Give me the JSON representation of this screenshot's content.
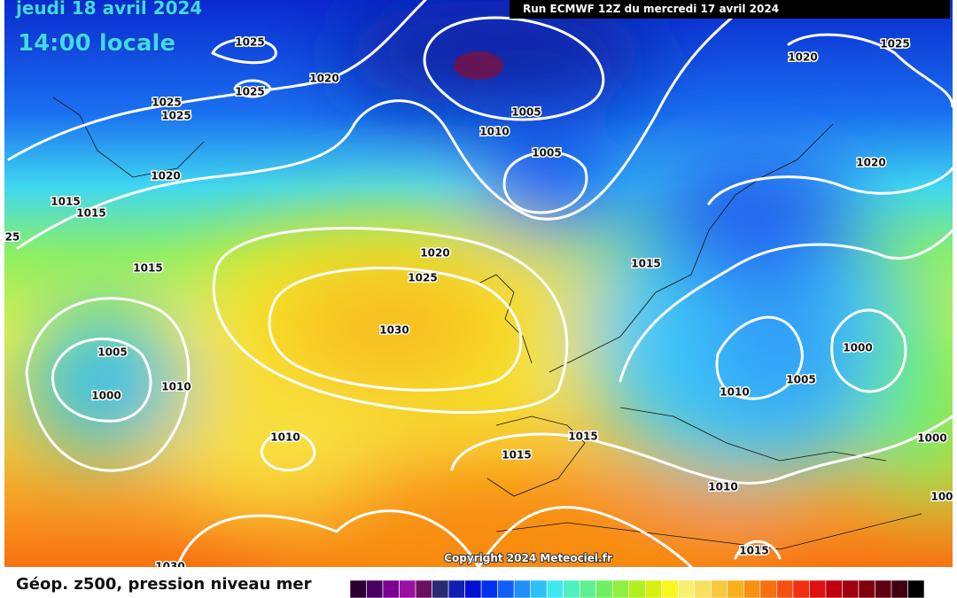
{
  "header": {
    "date": "jeudi 18 avril 2024",
    "time": "14:00 locale",
    "run": "Run ECMWF 12Z du mercredi 17 avril 2024"
  },
  "copyright": "Copyright 2024 Meteociel.fr",
  "isobar_labels": [
    "1025",
    "1025",
    "1020",
    "1025",
    "1025",
    "1020",
    "1015",
    "1015",
    "25",
    "1015",
    "1005",
    "1000",
    "1010",
    "1010",
    "1030",
    "1025",
    "1020",
    "1010",
    "1005",
    "1005",
    "1020",
    "1025",
    "1020",
    "1015",
    "1000",
    "1005",
    "1010",
    "1015",
    "1015",
    "1010",
    "1000",
    "1015",
    "100",
    "1030"
  ],
  "legend": {
    "title": "Géop. z500, pression niveau mer",
    "colors": [
      "#2a0030",
      "#4a0060",
      "#7a0090",
      "#9a10a0",
      "#6a1060",
      "#2a2a70",
      "#1020b0",
      "#0010d0",
      "#0030f0",
      "#1060f8",
      "#2090f8",
      "#30c0f8",
      "#40e8f0",
      "#50f0c0",
      "#60f090",
      "#70f060",
      "#90f040",
      "#b0f020",
      "#d8f010",
      "#f8f820",
      "#f8f070",
      "#f8e060",
      "#f8c840",
      "#f8b020",
      "#f89010",
      "#f87010",
      "#f85010",
      "#f03010",
      "#e01010",
      "#c00010",
      "#a00010",
      "#800010",
      "#600010",
      "#400010",
      "#000000"
    ]
  }
}
